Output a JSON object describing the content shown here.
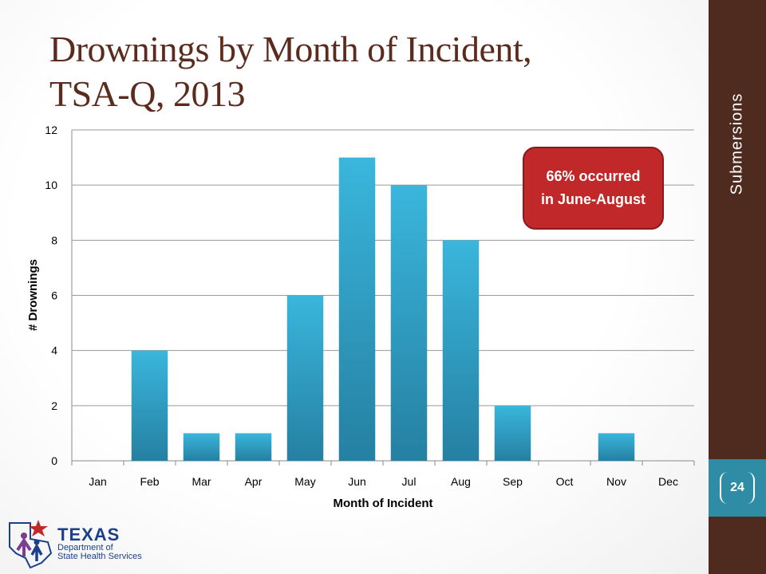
{
  "slide": {
    "title_line1": "Drownings by Month of Incident,",
    "title_line2": "TSA-Q, 2013",
    "sidebar_label": "Submersions",
    "page_number": "24"
  },
  "callout": {
    "line1": "66% occurred",
    "line2": "in June-August",
    "color": "#c0282a"
  },
  "logo": {
    "line1": "TEXAS",
    "line2": "Department of",
    "line3": "State Health Services"
  },
  "colors": {
    "title": "#5b2b1e",
    "sidebar": "#4e2a1f",
    "page_box": "#2e8da5",
    "bar_top": "#3ab6dc",
    "bar_bottom": "#2580a2"
  },
  "chart_data": {
    "type": "bar",
    "categories": [
      "Jan",
      "Feb",
      "Mar",
      "Apr",
      "May",
      "Jun",
      "Jul",
      "Aug",
      "Sep",
      "Oct",
      "Nov",
      "Dec"
    ],
    "values": [
      0,
      4,
      1,
      1,
      6,
      11,
      10,
      8,
      2,
      0,
      1,
      0
    ],
    "xlabel": "Month of Incident",
    "ylabel": "# Drownings",
    "ylim": [
      0,
      12
    ],
    "yticks": [
      0,
      2,
      4,
      6,
      8,
      10,
      12
    ],
    "grid": true,
    "legend": "none"
  }
}
